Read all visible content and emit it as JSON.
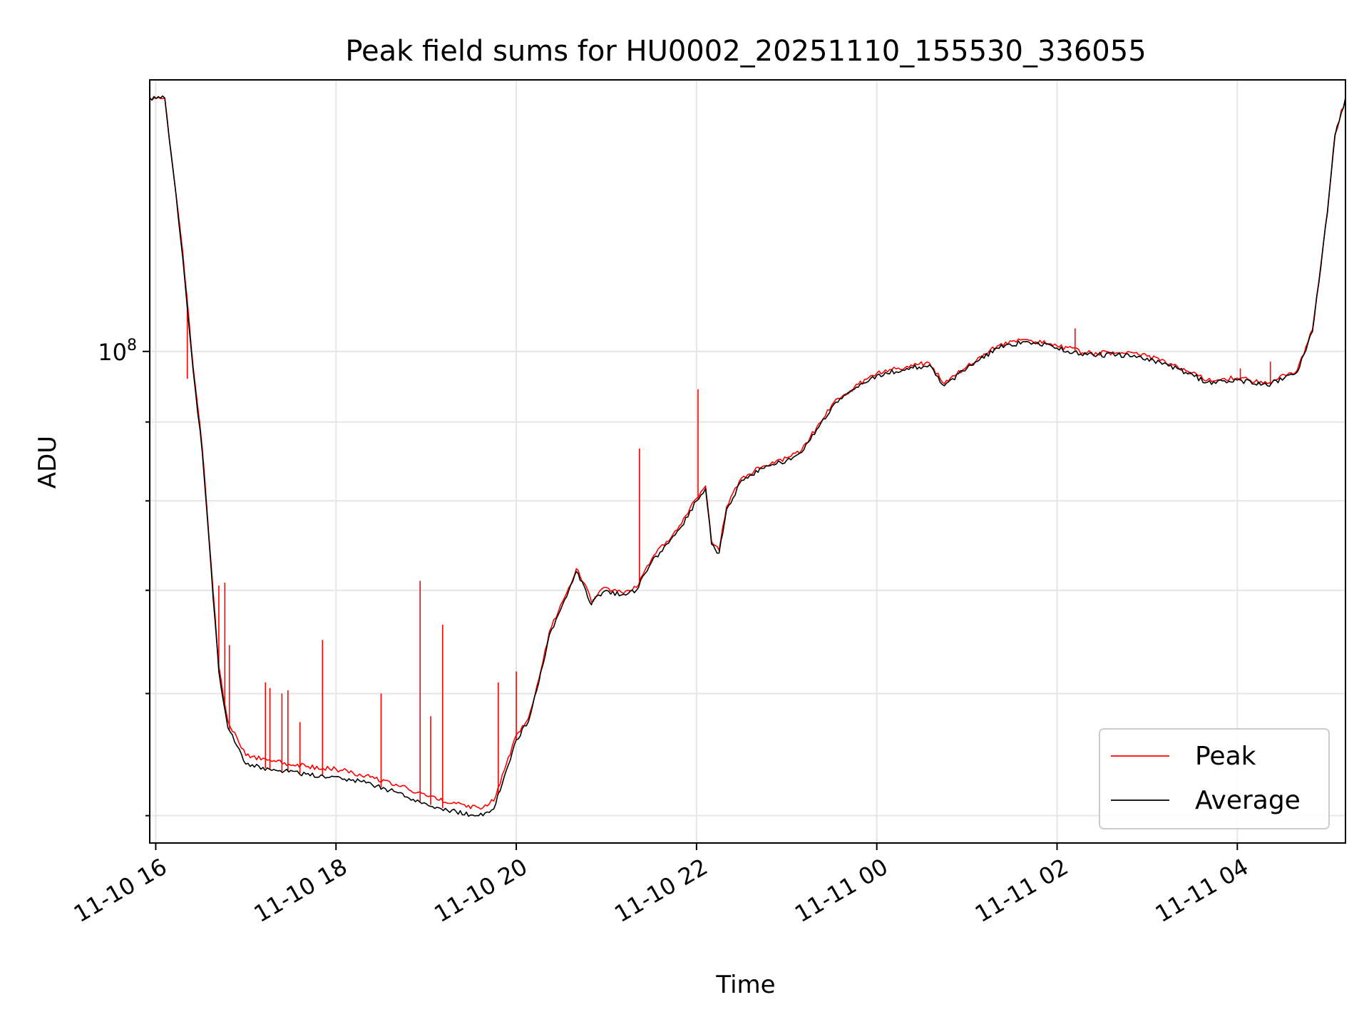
{
  "chart_data": {
    "type": "line",
    "title": "Peak field sums for HU0002_20251110_155530_336055",
    "xlabel": "Time",
    "ylabel": "ADU",
    "y_scale": "log",
    "xlim": [
      "2025-11-10 15:56",
      "2025-11-11 05:12"
    ],
    "ylim": [
      48000000,
      150000000
    ],
    "x_ticks": [
      {
        "t": "2025-11-10 16:00",
        "label": "11-10 16"
      },
      {
        "t": "2025-11-10 18:00",
        "label": "11-10 18"
      },
      {
        "t": "2025-11-10 20:00",
        "label": "11-10 20"
      },
      {
        "t": "2025-11-10 22:00",
        "label": "11-10 22"
      },
      {
        "t": "2025-11-11 00:00",
        "label": "11-11 00"
      },
      {
        "t": "2025-11-11 02:00",
        "label": "11-11 02"
      },
      {
        "t": "2025-11-11 04:00",
        "label": "11-11 04"
      }
    ],
    "y_major_ticks": [
      {
        "value": 100000000,
        "base": "10",
        "exp": "8"
      }
    ],
    "y_minor_ticks": [
      50000000,
      60000000,
      70000000,
      80000000,
      90000000,
      200000000
    ],
    "grid": true,
    "legend": {
      "position": "lower-right",
      "entries": [
        "Peak",
        "Average"
      ]
    },
    "series": [
      {
        "name": "Average",
        "color": "#000000",
        "points": [
          [
            "2025-11-10 15:56",
            146000000
          ],
          [
            "2025-11-10 16:06",
            146000000
          ],
          [
            "2025-11-10 16:12",
            130000000
          ],
          [
            "2025-11-10 16:18",
            115000000
          ],
          [
            "2025-11-10 16:25",
            97000000
          ],
          [
            "2025-11-10 16:31",
            86000000
          ],
          [
            "2025-11-10 16:37",
            72000000
          ],
          [
            "2025-11-10 16:42",
            62000000
          ],
          [
            "2025-11-10 16:48",
            57000000
          ],
          [
            "2025-11-10 16:54",
            55500000
          ],
          [
            "2025-11-10 17:00",
            54000000
          ],
          [
            "2025-11-10 17:20",
            53500000
          ],
          [
            "2025-11-10 17:40",
            53200000
          ],
          [
            "2025-11-10 18:00",
            53000000
          ],
          [
            "2025-11-10 18:20",
            52500000
          ],
          [
            "2025-11-10 18:40",
            51800000
          ],
          [
            "2025-11-10 19:00",
            50900000
          ],
          [
            "2025-11-10 19:20",
            50300000
          ],
          [
            "2025-11-10 19:35",
            50000000
          ],
          [
            "2025-11-10 19:45",
            50500000
          ],
          [
            "2025-11-10 19:52",
            53000000
          ],
          [
            "2025-11-10 20:00",
            56000000
          ],
          [
            "2025-11-10 20:08",
            57500000
          ],
          [
            "2025-11-10 20:15",
            61000000
          ],
          [
            "2025-11-10 20:22",
            65500000
          ],
          [
            "2025-11-10 20:28",
            67500000
          ],
          [
            "2025-11-10 20:35",
            70000000
          ],
          [
            "2025-11-10 20:40",
            72000000
          ],
          [
            "2025-11-10 20:45",
            70500000
          ],
          [
            "2025-11-10 20:50",
            68500000
          ],
          [
            "2025-11-10 20:55",
            69500000
          ],
          [
            "2025-11-10 21:00",
            70000000
          ],
          [
            "2025-11-10 21:10",
            69500000
          ],
          [
            "2025-11-10 21:20",
            70000000
          ],
          [
            "2025-11-10 21:30",
            73000000
          ],
          [
            "2025-11-10 21:40",
            75000000
          ],
          [
            "2025-11-10 21:50",
            77000000
          ],
          [
            "2025-11-10 22:00",
            80000000
          ],
          [
            "2025-11-10 22:06",
            81500000
          ],
          [
            "2025-11-10 22:10",
            75000000
          ],
          [
            "2025-11-10 22:15",
            74000000
          ],
          [
            "2025-11-10 22:20",
            79000000
          ],
          [
            "2025-11-10 22:30",
            82500000
          ],
          [
            "2025-11-10 22:45",
            84000000
          ],
          [
            "2025-11-10 23:00",
            85000000
          ],
          [
            "2025-11-10 23:10",
            86000000
          ],
          [
            "2025-11-10 23:20",
            89000000
          ],
          [
            "2025-11-10 23:30",
            92000000
          ],
          [
            "2025-11-10 23:45",
            94500000
          ],
          [
            "2025-11-11 00:00",
            96500000
          ],
          [
            "2025-11-11 00:20",
            97500000
          ],
          [
            "2025-11-11 00:35",
            98000000
          ],
          [
            "2025-11-11 00:45",
            95000000
          ],
          [
            "2025-11-11 01:00",
            97500000
          ],
          [
            "2025-11-11 01:20",
            100500000
          ],
          [
            "2025-11-11 01:40",
            101500000
          ],
          [
            "2025-11-11 02:00",
            100500000
          ],
          [
            "2025-11-11 02:20",
            99500000
          ],
          [
            "2025-11-11 02:40",
            99500000
          ],
          [
            "2025-11-11 03:00",
            99000000
          ],
          [
            "2025-11-11 03:20",
            97500000
          ],
          [
            "2025-11-11 03:40",
            95500000
          ],
          [
            "2025-11-11 04:00",
            95800000
          ],
          [
            "2025-11-11 04:20",
            95000000
          ],
          [
            "2025-11-11 04:40",
            97000000
          ],
          [
            "2025-11-11 04:50",
            103000000
          ],
          [
            "2025-11-11 05:00",
            123000000
          ],
          [
            "2025-11-11 05:05",
            138000000
          ],
          [
            "2025-11-11 05:12",
            146000000
          ]
        ]
      },
      {
        "name": "Peak",
        "color": "#ff0000",
        "points": [
          [
            "2025-11-10 15:56",
            146000000
          ],
          [
            "2025-11-10 16:06",
            146000000
          ],
          [
            "2025-11-10 16:12",
            130000000
          ],
          [
            "2025-11-10 16:18",
            116000000
          ],
          [
            "2025-11-10 16:25",
            97500000
          ],
          [
            "2025-11-10 16:31",
            86500000
          ],
          [
            "2025-11-10 16:37",
            72500000
          ],
          [
            "2025-11-10 16:42",
            62500000
          ],
          [
            "2025-11-10 16:48",
            57600000
          ],
          [
            "2025-11-10 16:54",
            56200000
          ],
          [
            "2025-11-10 17:00",
            54700000
          ],
          [
            "2025-11-10 17:20",
            54200000
          ],
          [
            "2025-11-10 17:40",
            53800000
          ],
          [
            "2025-11-10 18:00",
            53600000
          ],
          [
            "2025-11-10 18:20",
            53100000
          ],
          [
            "2025-11-10 18:40",
            52400000
          ],
          [
            "2025-11-10 19:00",
            51500000
          ],
          [
            "2025-11-10 19:20",
            50900000
          ],
          [
            "2025-11-10 19:35",
            50600000
          ],
          [
            "2025-11-10 19:45",
            51100000
          ],
          [
            "2025-11-10 19:52",
            53500000
          ],
          [
            "2025-11-10 20:00",
            56400000
          ],
          [
            "2025-11-10 20:08",
            57800000
          ],
          [
            "2025-11-10 20:15",
            61300000
          ],
          [
            "2025-11-10 20:22",
            65800000
          ],
          [
            "2025-11-10 20:28",
            67800000
          ],
          [
            "2025-11-10 20:35",
            70300000
          ],
          [
            "2025-11-10 20:40",
            72300000
          ],
          [
            "2025-11-10 20:45",
            70800000
          ],
          [
            "2025-11-10 20:50",
            68800000
          ],
          [
            "2025-11-10 20:55",
            69800000
          ],
          [
            "2025-11-10 21:00",
            70300000
          ],
          [
            "2025-11-10 21:10",
            69800000
          ],
          [
            "2025-11-10 21:20",
            70300000
          ],
          [
            "2025-11-10 21:30",
            73300000
          ],
          [
            "2025-11-10 21:40",
            75300000
          ],
          [
            "2025-11-10 21:50",
            77300000
          ],
          [
            "2025-11-10 22:00",
            80300000
          ],
          [
            "2025-11-10 22:06",
            81800000
          ],
          [
            "2025-11-10 22:10",
            75300000
          ],
          [
            "2025-11-10 22:15",
            74300000
          ],
          [
            "2025-11-10 22:20",
            79300000
          ],
          [
            "2025-11-10 22:30",
            82800000
          ],
          [
            "2025-11-10 22:45",
            84300000
          ],
          [
            "2025-11-10 23:00",
            85300000
          ],
          [
            "2025-11-10 23:10",
            86300000
          ],
          [
            "2025-11-10 23:20",
            89300000
          ],
          [
            "2025-11-10 23:30",
            92300000
          ],
          [
            "2025-11-10 23:45",
            94800000
          ],
          [
            "2025-11-11 00:00",
            96800000
          ],
          [
            "2025-11-11 00:20",
            97800000
          ],
          [
            "2025-11-11 00:35",
            98300000
          ],
          [
            "2025-11-11 00:45",
            95300000
          ],
          [
            "2025-11-11 01:00",
            97800000
          ],
          [
            "2025-11-11 01:20",
            100800000
          ],
          [
            "2025-11-11 01:40",
            101800000
          ],
          [
            "2025-11-11 02:00",
            100800000
          ],
          [
            "2025-11-11 02:20",
            99800000
          ],
          [
            "2025-11-11 02:40",
            99800000
          ],
          [
            "2025-11-11 03:00",
            99300000
          ],
          [
            "2025-11-11 03:20",
            97800000
          ],
          [
            "2025-11-11 03:40",
            95800000
          ],
          [
            "2025-11-11 04:00",
            96100000
          ],
          [
            "2025-11-11 04:20",
            95300000
          ],
          [
            "2025-11-11 04:40",
            97300000
          ],
          [
            "2025-11-11 04:50",
            103300000
          ],
          [
            "2025-11-11 05:00",
            123300000
          ],
          [
            "2025-11-11 05:05",
            138300000
          ],
          [
            "2025-11-11 05:12",
            146000000
          ]
        ]
      }
    ],
    "peak_spikes": [
      {
        "t": "2025-11-10 16:21",
        "value": 96000000
      },
      {
        "t": "2025-11-10 16:42",
        "value": 70500000
      },
      {
        "t": "2025-11-10 16:46",
        "value": 70800000
      },
      {
        "t": "2025-11-10 16:49",
        "value": 64500000
      },
      {
        "t": "2025-11-10 17:13",
        "value": 61000000
      },
      {
        "t": "2025-11-10 17:16",
        "value": 60500000
      },
      {
        "t": "2025-11-10 17:24",
        "value": 60000000
      },
      {
        "t": "2025-11-10 17:28",
        "value": 60300000
      },
      {
        "t": "2025-11-10 17:36",
        "value": 57500000
      },
      {
        "t": "2025-11-10 17:51",
        "value": 65000000
      },
      {
        "t": "2025-11-10 18:30",
        "value": 60000000
      },
      {
        "t": "2025-11-10 18:56",
        "value": 71000000
      },
      {
        "t": "2025-11-10 19:03",
        "value": 58000000
      },
      {
        "t": "2025-11-10 19:11",
        "value": 66500000
      },
      {
        "t": "2025-11-10 19:48",
        "value": 61000000
      },
      {
        "t": "2025-11-10 20:00",
        "value": 62000000
      },
      {
        "t": "2025-11-10 21:22",
        "value": 86500000
      },
      {
        "t": "2025-11-10 22:01",
        "value": 94500000
      },
      {
        "t": "2025-11-11 02:12",
        "value": 103500000
      },
      {
        "t": "2025-11-11 04:02",
        "value": 97500000
      },
      {
        "t": "2025-11-11 04:22",
        "value": 98500000
      }
    ]
  }
}
